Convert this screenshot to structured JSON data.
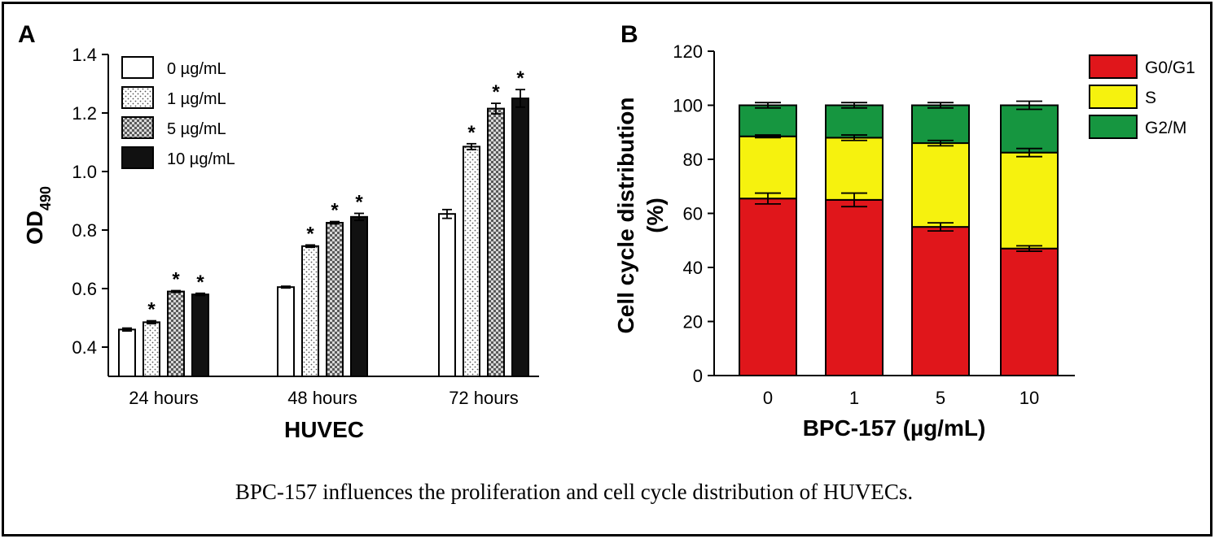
{
  "caption": "BPC-157 influences the proliferation and cell cycle distribution of HUVECs.",
  "chart_data": [
    {
      "panel": "A",
      "type": "bar",
      "ylabel": "OD490",
      "xlabel": "HUVEC",
      "ylim": [
        0.3,
        1.4
      ],
      "yticks": [
        "0.4",
        "0.6",
        "0.8",
        "1.0",
        "1.2",
        "1.4"
      ],
      "categories": [
        "24 hours",
        "48 hours",
        "72 hours"
      ],
      "legend_position": "top-left",
      "series": [
        {
          "name": "0 µg/mL",
          "fill": "white",
          "values": [
            0.46,
            0.605,
            0.855
          ],
          "errors": [
            0.005,
            0.003,
            0.015
          ],
          "significant": [
            false,
            false,
            false
          ]
        },
        {
          "name": "1 µg/mL",
          "fill": "dotted",
          "values": [
            0.485,
            0.745,
            1.085
          ],
          "errors": [
            0.005,
            0.004,
            0.01
          ],
          "significant": [
            true,
            true,
            true
          ]
        },
        {
          "name": "5 µg/mL",
          "fill": "checkered",
          "values": [
            0.59,
            0.825,
            1.215
          ],
          "errors": [
            0.003,
            0.004,
            0.018
          ],
          "significant": [
            true,
            true,
            true
          ]
        },
        {
          "name": "10 µg/mL",
          "fill": "black",
          "values": [
            0.58,
            0.845,
            1.25
          ],
          "errors": [
            0.004,
            0.012,
            0.03
          ],
          "significant": [
            true,
            true,
            true
          ]
        }
      ],
      "significance_mark": "*"
    },
    {
      "panel": "B",
      "type": "bar",
      "stacked": true,
      "ylabel_lines": [
        "Cell cycle distribution",
        "(%)"
      ],
      "xlabel": "BPC-157 (µg/mL)",
      "ylim": [
        0,
        120
      ],
      "yticks": [
        "0",
        "20",
        "40",
        "60",
        "80",
        "100",
        "120"
      ],
      "categories": [
        "0",
        "1",
        "5",
        "10"
      ],
      "legend_position": "top-right",
      "series": [
        {
          "name": "G0/G1",
          "color": "#e0161b",
          "values": [
            65.5,
            65,
            55,
            47
          ],
          "errors": [
            2,
            2.5,
            1.5,
            1
          ]
        },
        {
          "name": "S",
          "color": "#f6f20e",
          "values": [
            23,
            23,
            31,
            35.5
          ],
          "errors": [
            0.5,
            1,
            1,
            1.5
          ]
        },
        {
          "name": "G2/M",
          "color": "#169640",
          "values": [
            11.5,
            12,
            14,
            17.5
          ],
          "errors": [
            1,
            1,
            1,
            1.5
          ]
        }
      ]
    }
  ]
}
